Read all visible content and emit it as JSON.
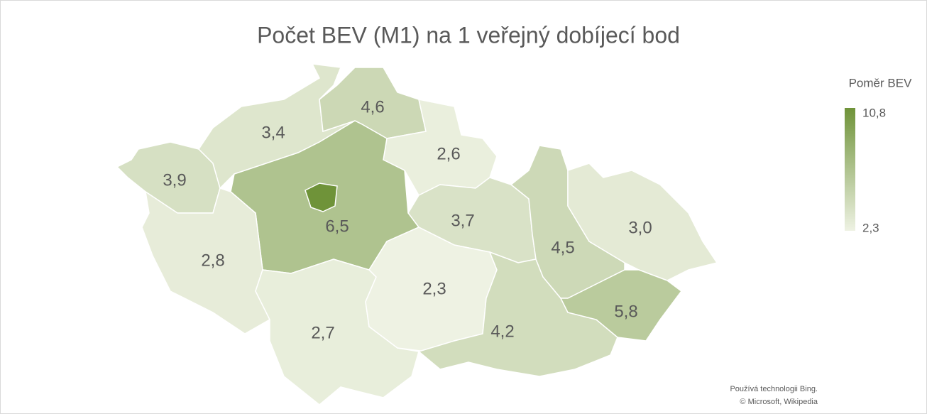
{
  "chart_data": {
    "type": "choropleth",
    "title": "Počet BEV (M1) na 1 veřejný dobíjecí bod",
    "values": [
      3.9,
      3.4,
      4.6,
      2.6,
      3.7,
      6.5,
      10.8,
      2.8,
      2.7,
      2.3,
      4.2,
      4.5,
      3.0,
      5.8
    ],
    "value_labels": [
      "3,9",
      "3,4",
      "4,6",
      "2,6",
      "3,7",
      "6,5",
      null,
      "2,8",
      "2,7",
      "2,3",
      "4,2",
      "4,5",
      "3,0",
      "5,8"
    ],
    "color_scale": {
      "title": "Poměr BEV",
      "colors": [
        "#eef2e3",
        "#6f9339"
      ],
      "min": {
        "value": 2.3,
        "label": "2,3"
      },
      "max": {
        "value": 10.8,
        "label": "10,8"
      }
    },
    "attribution": [
      "Používá technologii Bing.",
      "© Microsoft, Wikipedia"
    ]
  }
}
